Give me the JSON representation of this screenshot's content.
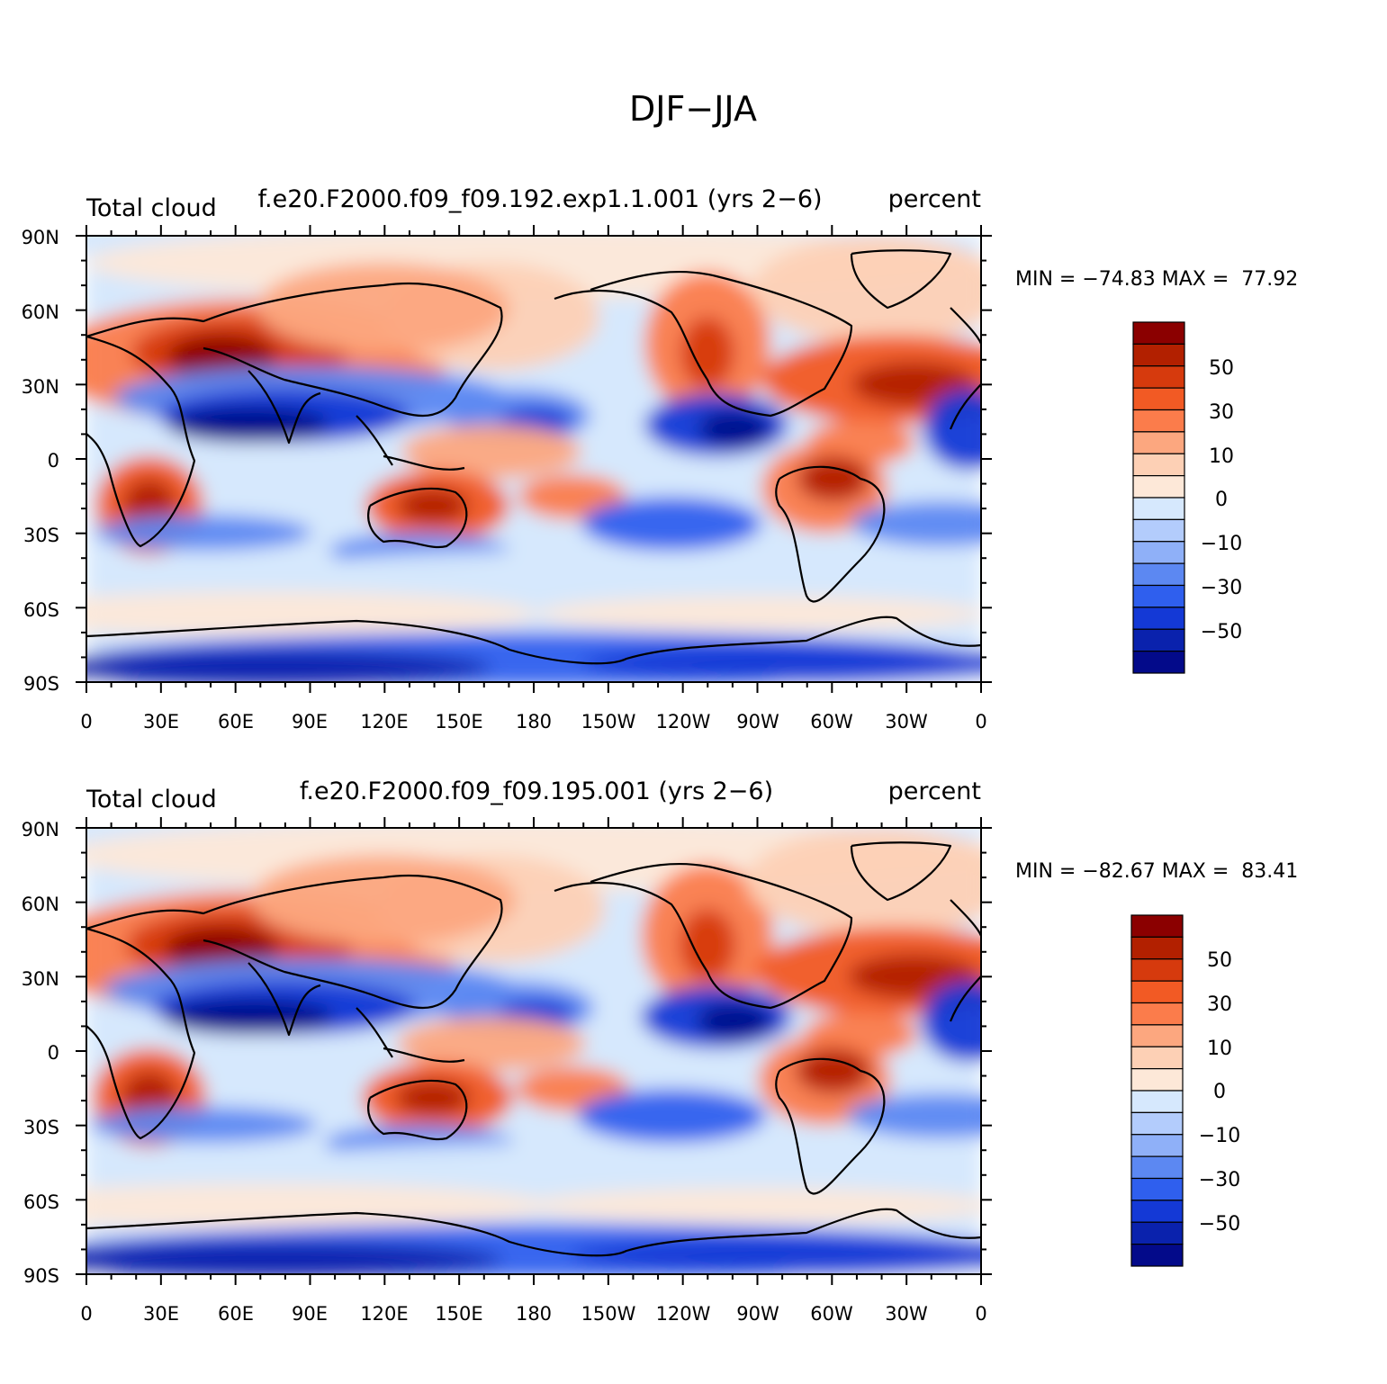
{
  "main_title": "DJF−JJA",
  "panels": [
    {
      "variable_label": "Total cloud",
      "case_label": "f.e20.F2000.f09_f09.192.exp1.1.001 (yrs 2−6)",
      "units_label": "percent",
      "min_max_text": "MIN = −74.83 MAX =  77.92"
    },
    {
      "variable_label": "Total cloud",
      "case_label": "f.e20.F2000.f09_f09.195.001 (yrs 2−6)",
      "units_label": "percent",
      "min_max_text": "MIN = −82.67 MAX =  83.41"
    }
  ],
  "axes": {
    "lat_labels": [
      "90N",
      "60N",
      "30N",
      "0",
      "30S",
      "60S",
      "90S"
    ],
    "lon_labels": [
      "0",
      "30E",
      "60E",
      "90E",
      "120E",
      "150E",
      "180",
      "150W",
      "120W",
      "90W",
      "60W",
      "30W",
      "0"
    ]
  },
  "colorbar": {
    "labels": [
      "50",
      "30",
      "10",
      "0",
      "−10",
      "−30",
      "−50"
    ],
    "colors": [
      "#8b0000",
      "#b22000",
      "#d63a0d",
      "#f25a24",
      "#fb7c4b",
      "#fca77f",
      "#fdd0b5",
      "#fde8d8",
      "#d6e8fd",
      "#b3ccfc",
      "#8fb0f8",
      "#5c88f2",
      "#2f5fee",
      "#1439d6",
      "#0a22ad",
      "#030a8a"
    ]
  }
}
